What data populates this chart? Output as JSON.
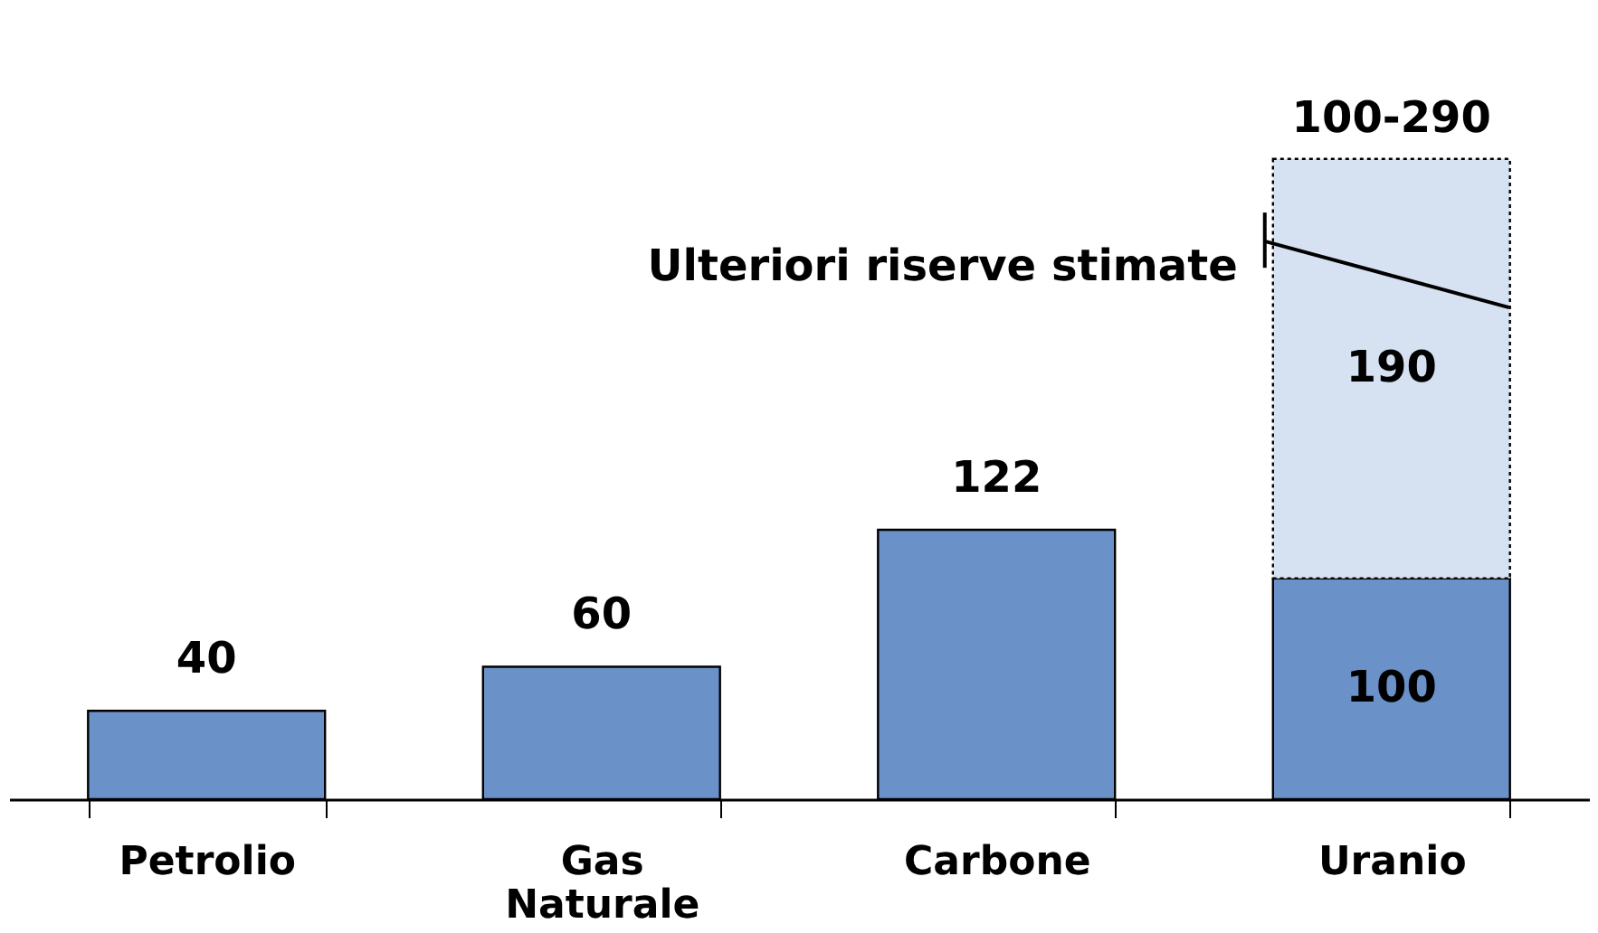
{
  "chart_data": {
    "type": "bar",
    "stacked": true,
    "categories": [
      "Petrolio",
      "Gas\nNaturale",
      "Carbone",
      "Uranio"
    ],
    "series": [
      {
        "color": "#6a91c8",
        "values": [
          40,
          60,
          122,
          100
        ]
      },
      {
        "color": "#d6e2f2",
        "values": [
          null,
          null,
          null,
          190
        ],
        "line_style": "dotted"
      }
    ],
    "data_labels": true,
    "totals": [
      null,
      null,
      null,
      "100-290"
    ],
    "annotations": [
      "Ulteriori riserve stimate"
    ],
    "legend": false,
    "grid": false
  }
}
